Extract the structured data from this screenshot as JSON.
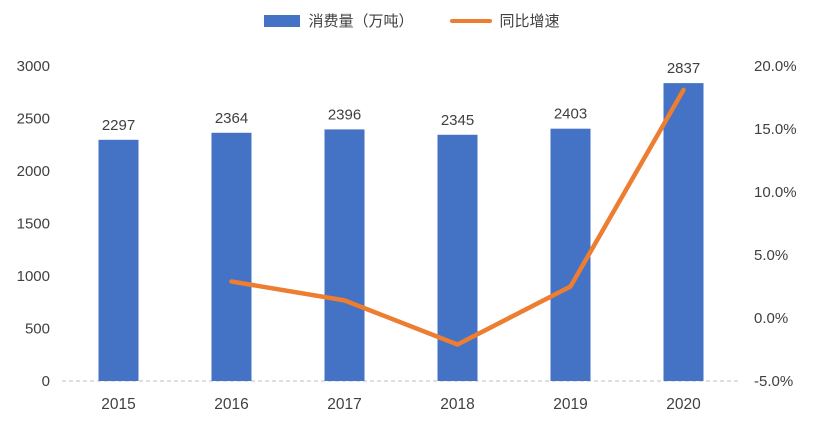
{
  "colors": {
    "bar": "#4472C4",
    "line": "#ED7D31",
    "axis_text": "#404040",
    "axis_line": "#bfbfbf",
    "background": "#ffffff"
  },
  "chart_data": {
    "type": "combo",
    "categories": [
      "2015",
      "2016",
      "2017",
      "2018",
      "2019",
      "2020"
    ],
    "series": [
      {
        "name": "消费量（万吨）",
        "type": "bar",
        "axis": "left",
        "color": "#4472C4",
        "values": [
          2297,
          2364,
          2396,
          2345,
          2403,
          2837
        ],
        "data_labels": [
          "2297",
          "2364",
          "2396",
          "2345",
          "2403",
          "2837"
        ]
      },
      {
        "name": "同比增速",
        "type": "line",
        "axis": "right",
        "color": "#ED7D31",
        "values": [
          null,
          2.9,
          1.4,
          -2.1,
          2.5,
          18.1
        ]
      }
    ],
    "left_axis": {
      "min": 0,
      "max": 3000,
      "step": 500,
      "tick_labels": [
        "0",
        "500",
        "1000",
        "1500",
        "2000",
        "2500",
        "3000"
      ]
    },
    "right_axis": {
      "min": -5,
      "max": 20,
      "step": 5,
      "tick_labels": [
        "-5.0%",
        "0.0%",
        "5.0%",
        "10.0%",
        "15.0%",
        "20.0%"
      ]
    },
    "legend_position": "top",
    "grid": false,
    "title": ""
  }
}
